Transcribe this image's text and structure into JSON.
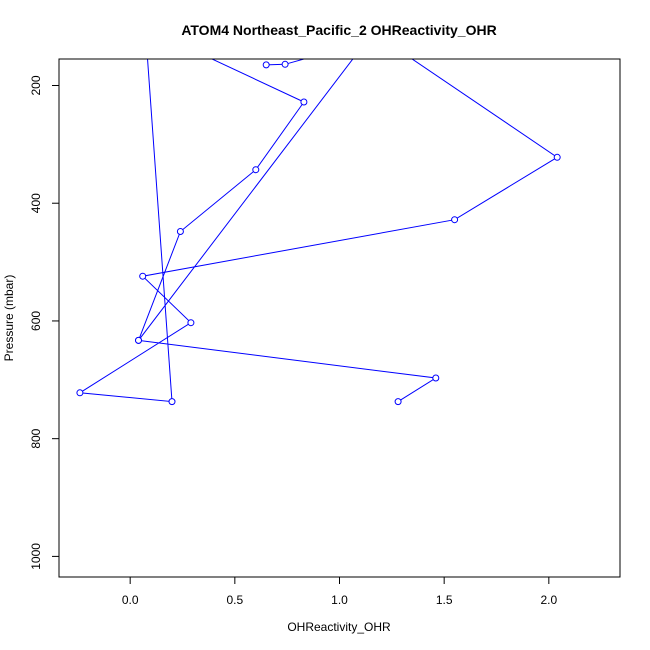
{
  "chart_data": {
    "type": "line",
    "title": "ATOM4 Northeast_Pacific_2 OHReactivity_OHR",
    "xlabel": "OHReactivity_OHR",
    "ylabel": "Pressure (mbar)",
    "xlim": [
      -0.34,
      2.34
    ],
    "ylim": [
      1035,
      155
    ],
    "y_reversed": true,
    "x_ticks": [
      0.0,
      0.5,
      1.0,
      1.5,
      2.0
    ],
    "x_tick_labels": [
      "0.0",
      "0.5",
      "1.0",
      "1.5",
      "2.0"
    ],
    "y_ticks": [
      200,
      400,
      600,
      800,
      1000
    ],
    "y_tick_labels": [
      "200",
      "400",
      "600",
      "800",
      "1000"
    ],
    "grid": false,
    "series_color": "#0000ff",
    "series": [
      {
        "x": [
          1.28,
          1.46,
          0.04,
          1.16,
          2.04,
          1.55,
          0.06,
          0.29,
          -0.24,
          0.2,
          0.06
        ],
        "y": [
          737,
          697,
          633,
          110,
          322,
          428,
          524,
          603,
          722,
          737,
          40
        ],
        "markers": [
          true,
          true,
          true,
          false,
          true,
          true,
          true,
          true,
          true,
          true,
          false
        ]
      },
      {
        "x": [
          0.0,
          0.83,
          0.6,
          0.24,
          0.04
        ],
        "y": [
          90,
          228,
          343,
          448,
          633
        ],
        "markers": [
          false,
          true,
          true,
          true,
          true
        ]
      },
      {
        "x": [
          0.65,
          0.74,
          0.9
        ],
        "y": [
          165,
          164,
          148
        ],
        "markers": [
          true,
          true,
          false
        ]
      }
    ]
  }
}
